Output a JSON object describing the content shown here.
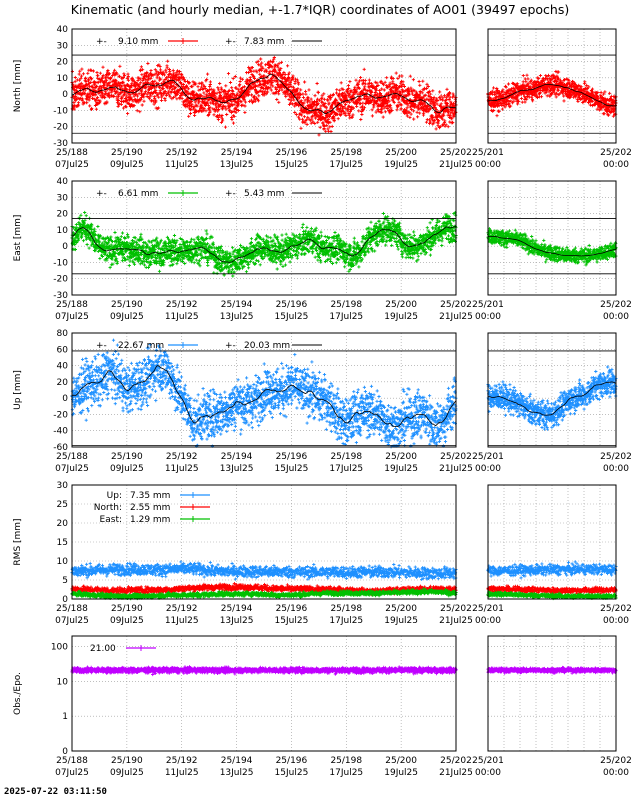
{
  "title": "Kinematic (and hourly median, +-1.7*IQR) coordinates of AO01 (39497 epochs)",
  "timestamp": "2025-07-22 03:11:50",
  "colors": {
    "north": "#ff0000",
    "east": "#00c000",
    "up": "#1e90ff",
    "obs": "#c000ff",
    "median": "#000000"
  },
  "chart_data": [
    {
      "type": "scatter",
      "id": "north",
      "ylabel": "North [mm]",
      "ylim": [
        -30,
        40
      ],
      "yticks": [
        -30,
        -20,
        -10,
        0,
        10,
        20,
        30,
        40
      ],
      "iqr_lines": [
        24,
        -24
      ],
      "legend": [
        {
          "text": "9.10 mm",
          "prefix": "+-",
          "series": "data",
          "color": "north"
        },
        {
          "text": "7.83 mm",
          "prefix": "+-",
          "series": "median",
          "color": "median"
        }
      ],
      "series": [
        {
          "noise_amplitude": 9.1,
          "median_range": [
            -12,
            12
          ]
        }
      ]
    },
    {
      "type": "scatter",
      "id": "east",
      "ylabel": "East [mm]",
      "ylim": [
        -30,
        40
      ],
      "yticks": [
        -30,
        -20,
        -10,
        0,
        10,
        20,
        30,
        40
      ],
      "iqr_lines": [
        17,
        -17
      ],
      "legend": [
        {
          "text": "6.61 mm",
          "prefix": "+-",
          "series": "data",
          "color": "east"
        },
        {
          "text": "5.43 mm",
          "prefix": "+-",
          "series": "median",
          "color": "median"
        }
      ],
      "series": [
        {
          "noise_amplitude": 6.61,
          "median_range": [
            -10,
            12
          ]
        }
      ]
    },
    {
      "type": "scatter",
      "id": "up",
      "ylabel": "Up [mm]",
      "ylim": [
        -60,
        80
      ],
      "yticks": [
        -60,
        -40,
        -20,
        0,
        20,
        40,
        60,
        80
      ],
      "iqr_lines": [
        58,
        -58
      ],
      "legend": [
        {
          "text": "22.67 mm",
          "prefix": "+-",
          "series": "data",
          "color": "up"
        },
        {
          "text": "20.03 mm",
          "prefix": "+-",
          "series": "median",
          "color": "median"
        }
      ],
      "series": [
        {
          "noise_amplitude": 22.67,
          "median_range": [
            -35,
            40
          ]
        }
      ]
    },
    {
      "type": "scatter",
      "id": "rms",
      "ylabel": "RMS [mm]",
      "ylim": [
        0,
        30
      ],
      "yticks": [
        0,
        5,
        10,
        15,
        20,
        25,
        30
      ],
      "legend": [
        {
          "text": "7.35 mm",
          "label": "Up:",
          "color": "up"
        },
        {
          "text": "2.55 mm",
          "label": "North:",
          "color": "north"
        },
        {
          "text": "1.29 mm",
          "label": "East:",
          "color": "east"
        }
      ],
      "series": [
        {
          "name": "Up",
          "mean": 7.35
        },
        {
          "name": "North",
          "mean": 2.55
        },
        {
          "name": "East",
          "mean": 1.29
        }
      ]
    },
    {
      "type": "scatter",
      "id": "obs",
      "ylabel": "Obs./Epo.",
      "yscale": "log",
      "yticks": [
        {
          "label": "0",
          "v": 0.1
        },
        {
          "label": "1",
          "v": 1
        },
        {
          "label": "10",
          "v": 10
        },
        {
          "label": "100",
          "v": 100
        }
      ],
      "legend": [
        {
          "text": "21.00",
          "color": "obs"
        }
      ],
      "series": [
        {
          "mean": 21.0
        }
      ]
    }
  ],
  "xaxis_main": {
    "xlim": [
      188,
      202
    ],
    "ticks": [
      {
        "v": 188,
        "l1": "25/188",
        "l2": "07Jul25"
      },
      {
        "v": 190,
        "l1": "25/190",
        "l2": "09Jul25"
      },
      {
        "v": 192,
        "l1": "25/192",
        "l2": "11Jul25"
      },
      {
        "v": 194,
        "l1": "25/194",
        "l2": "13Jul25"
      },
      {
        "v": 196,
        "l1": "25/196",
        "l2": "15Jul25"
      },
      {
        "v": 198,
        "l1": "25/198",
        "l2": "17Jul25"
      },
      {
        "v": 200,
        "l1": "25/200",
        "l2": "19Jul25"
      },
      {
        "v": 202,
        "l1": "25/202",
        "l2": "21Jul25"
      }
    ]
  },
  "xaxis_zoom": {
    "xlim": [
      201,
      202
    ],
    "ticks": [
      {
        "v": 201,
        "l1": "25/201",
        "l2": "00:00"
      },
      {
        "v": 202,
        "l1": "25/202",
        "l2": "00:00"
      }
    ]
  }
}
